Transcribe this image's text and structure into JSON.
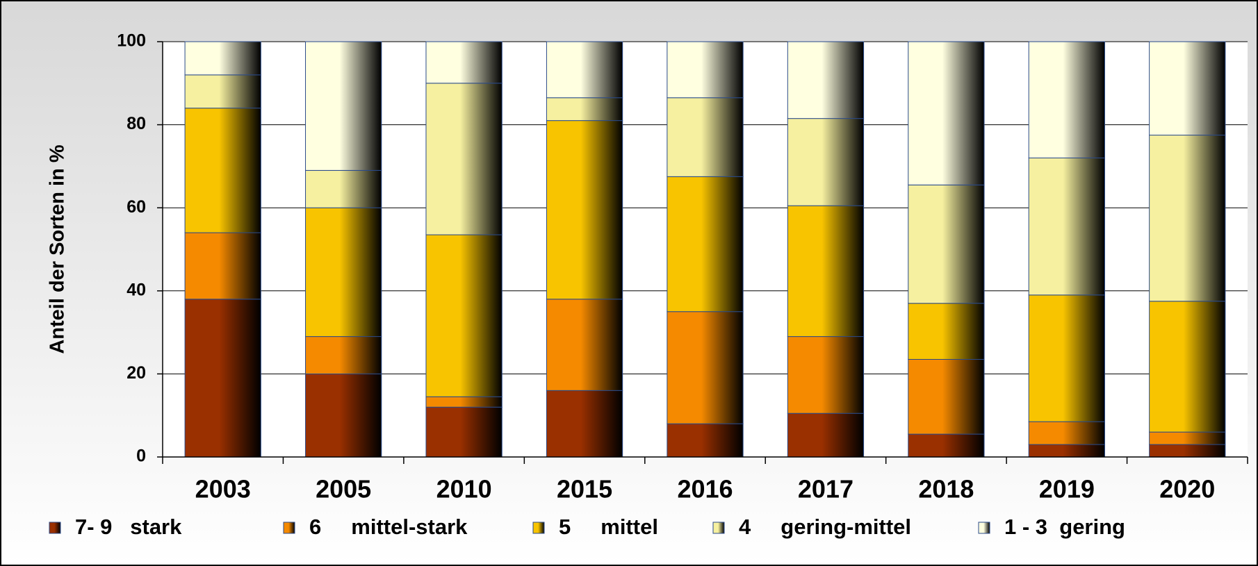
{
  "chart_data": {
    "type": "stacked_bar",
    "y_label": "Anteil der Sorten in %",
    "categories": [
      "2003",
      "2005",
      "2010",
      "2015",
      "2016",
      "2017",
      "2018",
      "2019",
      "2020"
    ],
    "series": [
      {
        "name": "7- 9   stark",
        "color": "#9a3000",
        "values": [
          38,
          20,
          12,
          16,
          8,
          10.5,
          5.5,
          3,
          3
        ]
      },
      {
        "name": "6     mittel-stark",
        "color": "#f58a00",
        "values": [
          16,
          9,
          2.5,
          22,
          27,
          18.5,
          18,
          5.5,
          3
        ]
      },
      {
        "name": "5     mittel",
        "color": "#f8c400",
        "values": [
          30,
          31,
          39,
          43,
          32.5,
          31.5,
          13.5,
          30.5,
          31.5
        ]
      },
      {
        "name": "4     gering-mittel",
        "color": "#f6f0a0",
        "values": [
          8,
          9,
          36.5,
          5.5,
          19,
          21,
          28.5,
          33,
          40
        ]
      },
      {
        "name": "1 - 3  gering",
        "color": "#ffffe0",
        "values": [
          8,
          31,
          10,
          13.5,
          13.5,
          18.5,
          34.5,
          28,
          22.5
        ]
      }
    ],
    "ylim": [
      0,
      100
    ],
    "yticks": [
      0,
      20,
      40,
      60,
      80,
      100
    ],
    "grid": true
  }
}
